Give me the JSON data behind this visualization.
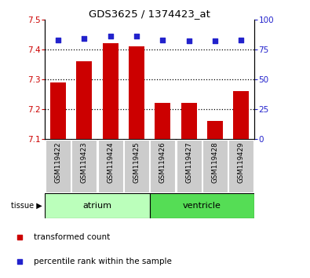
{
  "title": "GDS3625 / 1374423_at",
  "samples": [
    "GSM119422",
    "GSM119423",
    "GSM119424",
    "GSM119425",
    "GSM119426",
    "GSM119427",
    "GSM119428",
    "GSM119429"
  ],
  "transformed_counts": [
    7.29,
    7.36,
    7.42,
    7.41,
    7.22,
    7.22,
    7.16,
    7.26
  ],
  "percentile_ranks": [
    83,
    84,
    86,
    86,
    83,
    82,
    82,
    83
  ],
  "bar_bottom": 7.1,
  "ylim": [
    7.1,
    7.5
  ],
  "ylim_right": [
    0,
    100
  ],
  "yticks_left": [
    7.1,
    7.2,
    7.3,
    7.4,
    7.5
  ],
  "yticks_right": [
    0,
    25,
    50,
    75,
    100
  ],
  "bar_color": "#cc0000",
  "dot_color": "#2222cc",
  "atrium_color": "#bbffbb",
  "ventricle_color": "#55dd55",
  "sample_box_color": "#cccccc",
  "legend_items": [
    {
      "label": "transformed count",
      "color": "#cc0000"
    },
    {
      "label": "percentile rank within the sample",
      "color": "#2222cc"
    }
  ],
  "grid_yticks": [
    7.2,
    7.3,
    7.4
  ]
}
